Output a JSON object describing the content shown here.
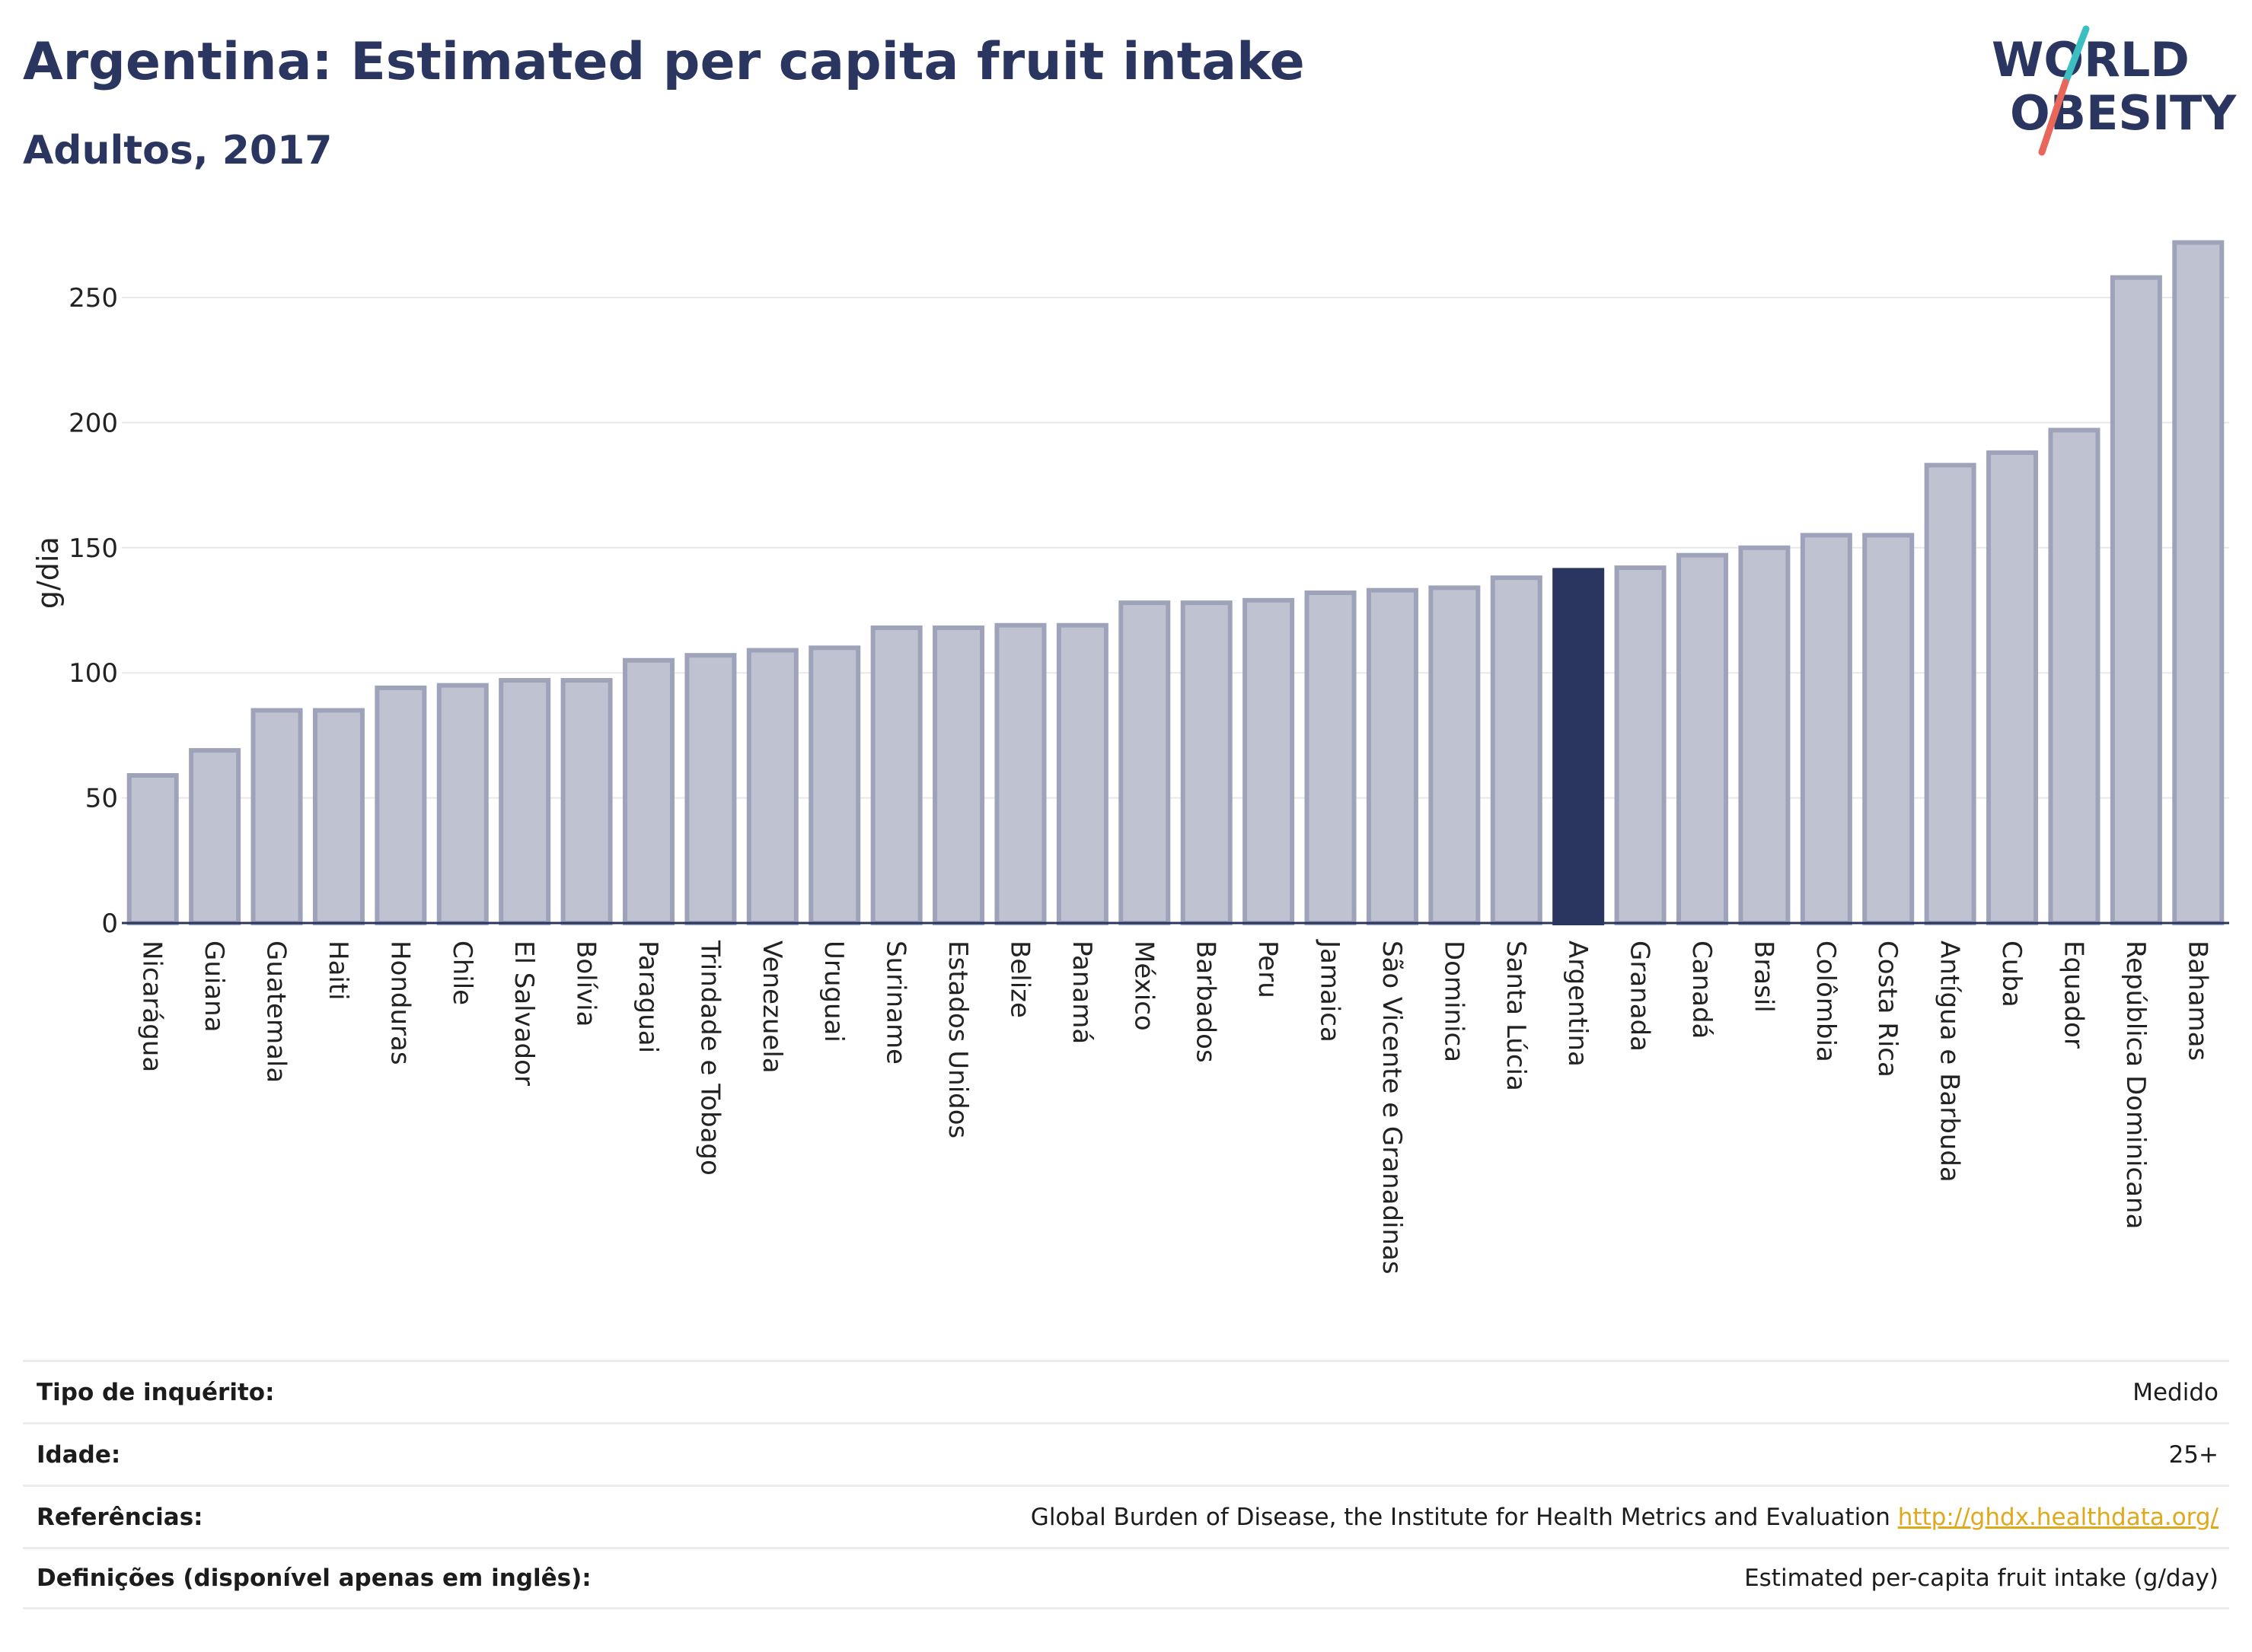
{
  "header": {
    "title": "Argentina: Estimated per capita fruit intake",
    "subtitle": "Adultos, 2017"
  },
  "logo": {
    "line1": "WORLD",
    "line2": "OBESITY",
    "colors": {
      "text": "#2a3560",
      "slash_top": "#3bbfc1",
      "slash_bottom": "#e8675a"
    }
  },
  "colors": {
    "bar_fill": "#bfc3d1",
    "bar_stroke": "#9ea3b9",
    "highlight": "#2a3560",
    "grid": "#e8e8e8",
    "baseline": "#2a3560",
    "link": "#e0a81c"
  },
  "chart_data": {
    "type": "bar",
    "title": "Argentina: Estimated per capita fruit intake",
    "subtitle": "Adultos, 2017",
    "ylabel": "g/dia",
    "xlabel": "",
    "ylim": [
      0,
      280
    ],
    "yticks": [
      0,
      50,
      100,
      150,
      200,
      250
    ],
    "grid": true,
    "highlight": "Argentina",
    "categories": [
      "Nicarágua",
      "Guiana",
      "Guatemala",
      "Haiti",
      "Honduras",
      "Chile",
      "El Salvador",
      "Bolívia",
      "Paraguai",
      "Trindade e Tobago",
      "Venezuela",
      "Uruguai",
      "Suriname",
      "Estados Unidos",
      "Belize",
      "Panamá",
      "México",
      "Barbados",
      "Peru",
      "Jamaica",
      "São Vicente e Granadinas",
      "Dominica",
      "Santa Lúcia",
      "Argentina",
      "Granada",
      "Canadá",
      "Brasil",
      "Colômbia",
      "Costa Rica",
      "Antígua e Barbuda",
      "Cuba",
      "Equador",
      "República Dominicana",
      "Bahamas"
    ],
    "values": [
      59,
      69,
      85,
      85,
      94,
      95,
      97,
      97,
      105,
      107,
      109,
      110,
      118,
      118,
      119,
      119,
      128,
      128,
      129,
      132,
      133,
      134,
      138,
      141,
      142,
      147,
      150,
      155,
      155,
      183,
      188,
      197,
      258,
      272
    ]
  },
  "info": [
    {
      "key": "Tipo de inquérito:",
      "value": "Medido"
    },
    {
      "key": "Idade:",
      "value": "25+"
    },
    {
      "key": "Referências:",
      "value": "Global Burden of Disease, the Institute for Health Metrics and Evaluation",
      "link": "http://ghdx.healthdata.org/"
    },
    {
      "key": "Definições (disponível apenas em inglês):",
      "value": "Estimated per-capita fruit intake (g/day)"
    }
  ]
}
